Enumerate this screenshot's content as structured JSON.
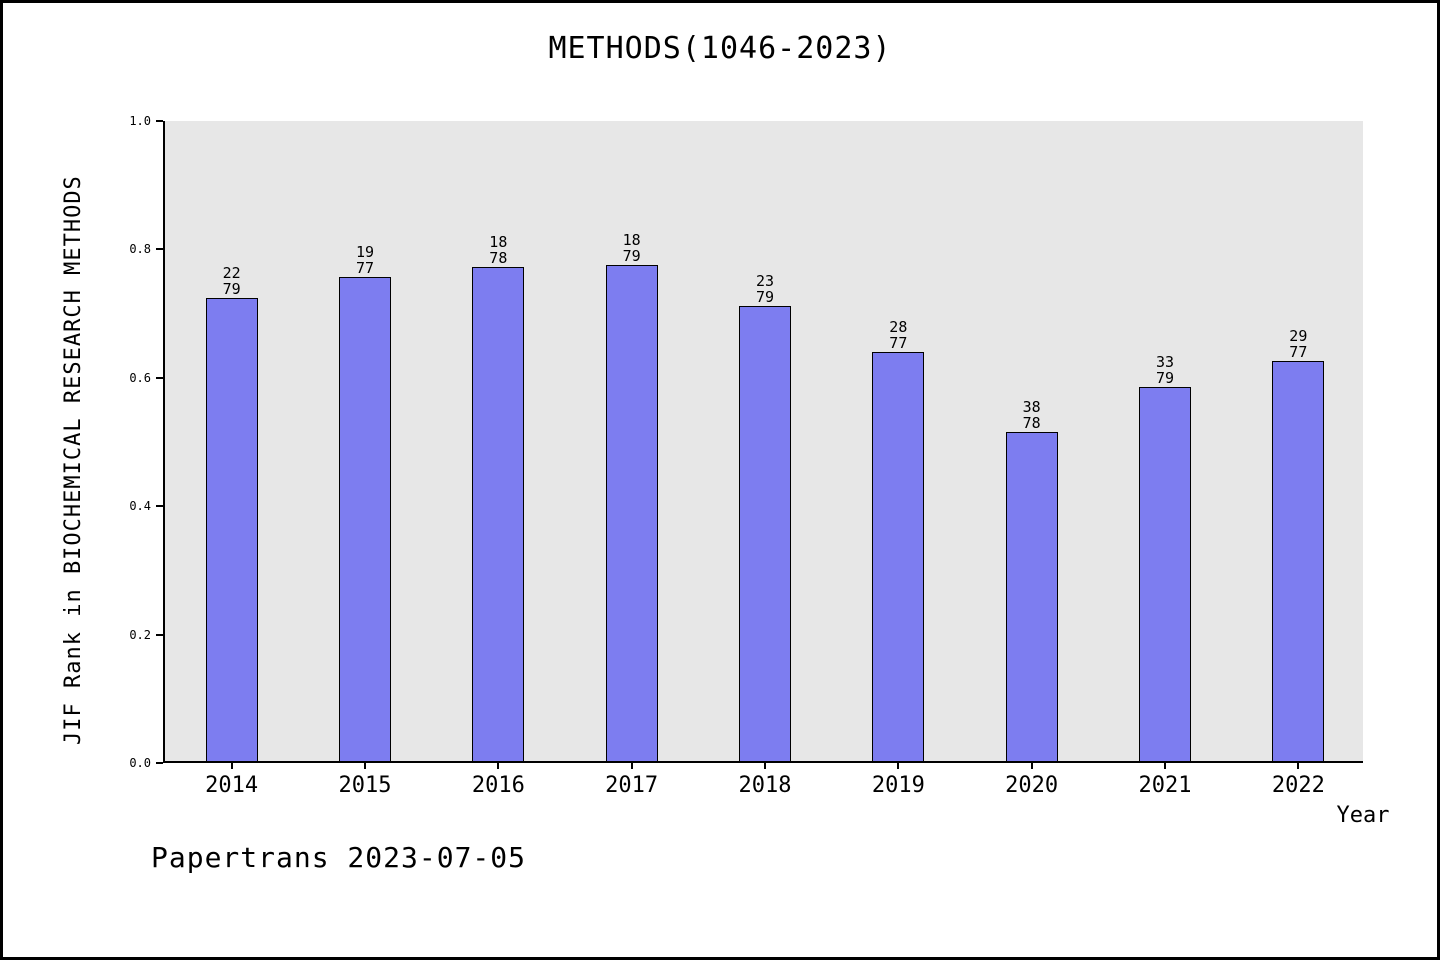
{
  "chart_data": {
    "type": "bar",
    "title": "METHODS(1046-2023)",
    "xlabel": "Year",
    "ylabel": "JIF Rank in BIOCHEMICAL RESEARCH METHODS",
    "caption": "Papertrans 2023-07-05",
    "categories": [
      "2014",
      "2015",
      "2016",
      "2017",
      "2018",
      "2019",
      "2020",
      "2021",
      "2022"
    ],
    "values": [
      0.7215,
      0.7532,
      0.7692,
      0.7722,
      0.7089,
      0.6364,
      0.5128,
      0.5823,
      0.6234
    ],
    "annotations": [
      {
        "rank": "22",
        "total": "79"
      },
      {
        "rank": "19",
        "total": "77"
      },
      {
        "rank": "18",
        "total": "78"
      },
      {
        "rank": "18",
        "total": "79"
      },
      {
        "rank": "23",
        "total": "79"
      },
      {
        "rank": "28",
        "total": "77"
      },
      {
        "rank": "38",
        "total": "78"
      },
      {
        "rank": "33",
        "total": "79"
      },
      {
        "rank": "29",
        "total": "77"
      }
    ],
    "ylim": [
      0.0,
      1.0
    ],
    "yticks": [
      "0.0",
      "0.2",
      "0.4",
      "0.6",
      "0.8",
      "1.0"
    ],
    "legend": "none",
    "grid": "off",
    "bar_color": "#7d7df0",
    "bar_edge_color": "#000000",
    "plot_bg_color": "#e7e7e7"
  }
}
